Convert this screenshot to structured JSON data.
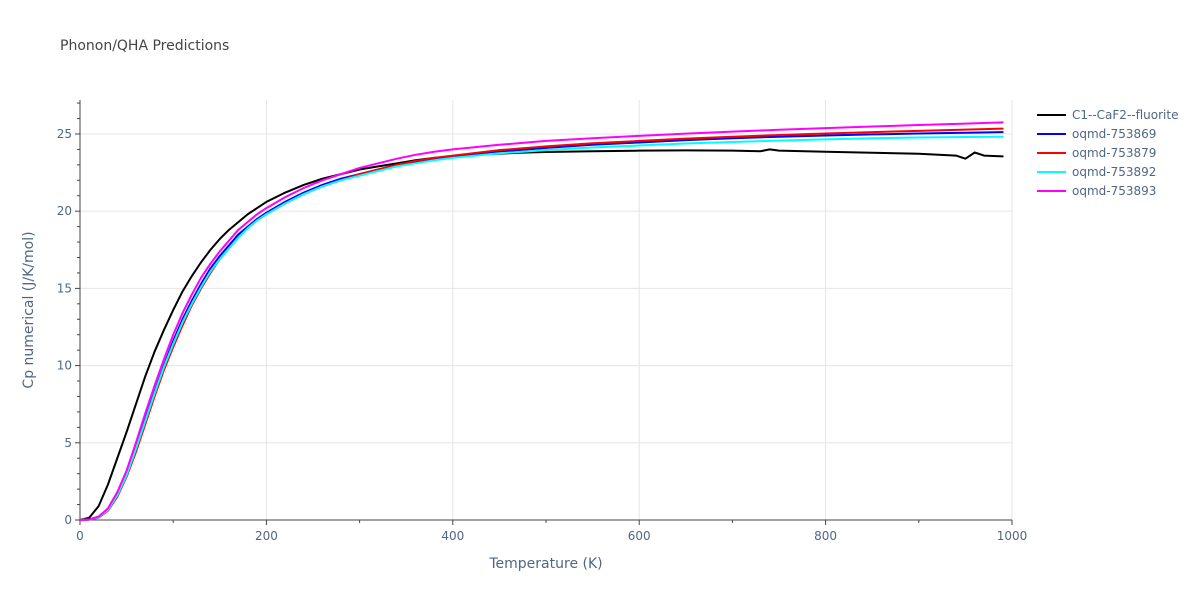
{
  "chart_data": {
    "type": "line",
    "title": "Phonon/QHA Predictions",
    "xlabel": "Temperature (K)",
    "ylabel": "Cp numerical (J/K/mol)",
    "xlim": [
      0,
      1000
    ],
    "ylim": [
      0,
      27.2
    ],
    "x_ticks": [
      0,
      200,
      400,
      600,
      800,
      1000
    ],
    "y_ticks": [
      0,
      5,
      10,
      15,
      20,
      25
    ],
    "grid": true,
    "legend_position": "top-right",
    "series": [
      {
        "name": "C1--CaF2--fluorite",
        "color": "#000000",
        "x": [
          0,
          10,
          20,
          30,
          40,
          50,
          60,
          70,
          80,
          90,
          100,
          110,
          120,
          130,
          140,
          150,
          160,
          170,
          180,
          190,
          200,
          220,
          240,
          260,
          280,
          300,
          320,
          340,
          360,
          380,
          400,
          420,
          440,
          460,
          480,
          500,
          550,
          600,
          650,
          700,
          730,
          740,
          750,
          800,
          850,
          900,
          940,
          950,
          960,
          970,
          990
        ],
        "y": [
          0,
          0.15,
          0.9,
          2.3,
          4.0,
          5.7,
          7.5,
          9.3,
          10.9,
          12.3,
          13.6,
          14.8,
          15.8,
          16.7,
          17.5,
          18.2,
          18.8,
          19.3,
          19.8,
          20.2,
          20.6,
          21.2,
          21.7,
          22.1,
          22.4,
          22.7,
          22.9,
          23.1,
          23.3,
          23.45,
          23.55,
          23.65,
          23.7,
          23.75,
          23.8,
          23.83,
          23.88,
          23.92,
          23.94,
          23.92,
          23.88,
          24.0,
          23.92,
          23.85,
          23.78,
          23.72,
          23.6,
          23.4,
          23.8,
          23.6,
          23.55
        ]
      },
      {
        "name": "oqmd-753869",
        "color": "#0000ff",
        "x": [
          0,
          10,
          20,
          30,
          40,
          50,
          60,
          70,
          80,
          90,
          100,
          110,
          120,
          130,
          140,
          150,
          160,
          170,
          180,
          190,
          200,
          220,
          240,
          260,
          280,
          300,
          320,
          340,
          360,
          380,
          400,
          450,
          500,
          550,
          600,
          650,
          700,
          750,
          800,
          850,
          900,
          950,
          990
        ],
        "y": [
          0,
          0.03,
          0.2,
          0.7,
          1.7,
          3.0,
          4.7,
          6.5,
          8.3,
          10.0,
          11.6,
          13.0,
          14.2,
          15.3,
          16.3,
          17.1,
          17.8,
          18.5,
          19.0,
          19.5,
          19.9,
          20.6,
          21.2,
          21.7,
          22.1,
          22.4,
          22.7,
          23.0,
          23.2,
          23.4,
          23.55,
          23.85,
          24.1,
          24.3,
          24.45,
          24.6,
          24.72,
          24.82,
          24.9,
          24.97,
          25.03,
          25.08,
          25.12
        ]
      },
      {
        "name": "oqmd-753879",
        "color": "#ff0000",
        "x": [
          0,
          10,
          20,
          30,
          40,
          50,
          60,
          70,
          80,
          90,
          100,
          110,
          120,
          130,
          140,
          150,
          160,
          170,
          180,
          190,
          200,
          220,
          240,
          260,
          280,
          300,
          320,
          340,
          360,
          380,
          400,
          450,
          500,
          550,
          600,
          650,
          700,
          750,
          800,
          850,
          900,
          950,
          990
        ],
        "y": [
          0,
          0.02,
          0.15,
          0.6,
          1.5,
          2.8,
          4.4,
          6.2,
          8.0,
          9.7,
          11.2,
          12.6,
          13.9,
          15.0,
          16.0,
          16.9,
          17.6,
          18.3,
          18.9,
          19.4,
          19.8,
          20.5,
          21.1,
          21.6,
          22.0,
          22.4,
          22.7,
          23.0,
          23.25,
          23.45,
          23.6,
          23.95,
          24.2,
          24.4,
          24.55,
          24.7,
          24.82,
          24.93,
          25.03,
          25.12,
          25.2,
          25.28,
          25.35
        ]
      },
      {
        "name": "oqmd-753892",
        "color": "#00ffff",
        "x": [
          0,
          10,
          20,
          30,
          40,
          50,
          60,
          70,
          80,
          90,
          100,
          110,
          120,
          130,
          140,
          150,
          160,
          170,
          180,
          190,
          200,
          220,
          240,
          260,
          280,
          300,
          320,
          340,
          360,
          380,
          400,
          450,
          500,
          550,
          600,
          650,
          700,
          750,
          800,
          850,
          900,
          950,
          990
        ],
        "y": [
          0,
          0.03,
          0.18,
          0.65,
          1.6,
          2.9,
          4.6,
          6.4,
          8.2,
          9.9,
          11.4,
          12.8,
          14.0,
          15.1,
          16.1,
          16.9,
          17.6,
          18.3,
          18.9,
          19.4,
          19.8,
          20.5,
          21.1,
          21.6,
          22.0,
          22.3,
          22.6,
          22.9,
          23.1,
          23.3,
          23.45,
          23.75,
          23.95,
          24.12,
          24.25,
          24.38,
          24.48,
          24.57,
          24.65,
          24.72,
          24.77,
          24.8,
          24.82
        ]
      },
      {
        "name": "oqmd-753893",
        "color": "#ff00ff",
        "x": [
          0,
          10,
          20,
          30,
          40,
          50,
          60,
          70,
          80,
          90,
          100,
          110,
          120,
          130,
          140,
          150,
          160,
          170,
          180,
          190,
          200,
          220,
          240,
          260,
          280,
          300,
          320,
          340,
          360,
          380,
          400,
          450,
          500,
          550,
          600,
          650,
          700,
          750,
          800,
          850,
          900,
          950,
          990
        ],
        "y": [
          0,
          0.04,
          0.22,
          0.75,
          1.8,
          3.2,
          5.0,
          6.9,
          8.7,
          10.4,
          12.0,
          13.4,
          14.6,
          15.7,
          16.6,
          17.4,
          18.1,
          18.8,
          19.3,
          19.8,
          20.2,
          20.9,
          21.5,
          22.0,
          22.4,
          22.8,
          23.1,
          23.4,
          23.65,
          23.85,
          24.0,
          24.3,
          24.55,
          24.72,
          24.88,
          25.02,
          25.15,
          25.27,
          25.38,
          25.48,
          25.58,
          25.67,
          25.75
        ]
      }
    ]
  }
}
